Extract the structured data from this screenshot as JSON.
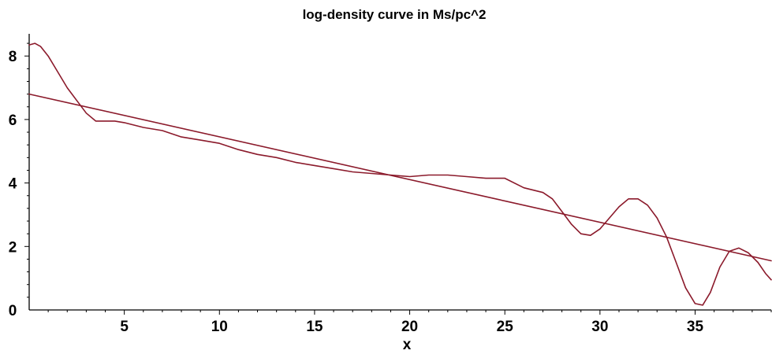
{
  "chart_data": {
    "type": "line",
    "title": "log-density curve in Ms/pc^2",
    "xlabel": "x",
    "ylabel": "",
    "xlim": [
      0,
      39
    ],
    "ylim": [
      0,
      8.6
    ],
    "x_ticks": [
      5,
      10,
      15,
      20,
      25,
      30,
      35
    ],
    "y_ticks": [
      0,
      2,
      4,
      6,
      8
    ],
    "grid": false,
    "legend": "none",
    "colors": {
      "curve": "#8b1a2b",
      "fit": "#8b1a2b",
      "axis": "#000000"
    },
    "series": [
      {
        "values_x": [
          0,
          0.3,
          0.6,
          1.0,
          1.5,
          2.0,
          2.5,
          3.0,
          3.5,
          4.0,
          4.5,
          5.0,
          6.0,
          7.0,
          8.0,
          9.0,
          10.0,
          11.0,
          12.0,
          13.0,
          14.0,
          15.0,
          16.0,
          17.0,
          18.0,
          19.0,
          20.0,
          21.0,
          22.0,
          23.0,
          24.0,
          25.0,
          26.0,
          27.0,
          27.5,
          28.0,
          28.5,
          29.0,
          29.5,
          30.0,
          30.5,
          31.0,
          31.5,
          32.0,
          32.5,
          33.0,
          33.5,
          34.0,
          34.5,
          35.0,
          35.4,
          35.8,
          36.3,
          36.8,
          37.3,
          37.8,
          38.3,
          38.7,
          39.0
        ],
        "values_y": [
          8.35,
          8.4,
          8.3,
          8.0,
          7.5,
          7.0,
          6.6,
          6.2,
          5.95,
          5.95,
          5.95,
          5.9,
          5.75,
          5.65,
          5.45,
          5.35,
          5.25,
          5.05,
          4.9,
          4.8,
          4.65,
          4.55,
          4.45,
          4.35,
          4.3,
          4.25,
          4.2,
          4.25,
          4.25,
          4.2,
          4.15,
          4.15,
          3.85,
          3.7,
          3.5,
          3.1,
          2.7,
          2.4,
          2.35,
          2.55,
          2.9,
          3.25,
          3.5,
          3.5,
          3.3,
          2.9,
          2.3,
          1.5,
          0.7,
          0.2,
          0.15,
          0.55,
          1.35,
          1.85,
          1.95,
          1.8,
          1.5,
          1.15,
          0.95
        ]
      },
      {
        "values_x": [
          0,
          39
        ],
        "values_y": [
          6.8,
          1.55
        ]
      }
    ]
  }
}
